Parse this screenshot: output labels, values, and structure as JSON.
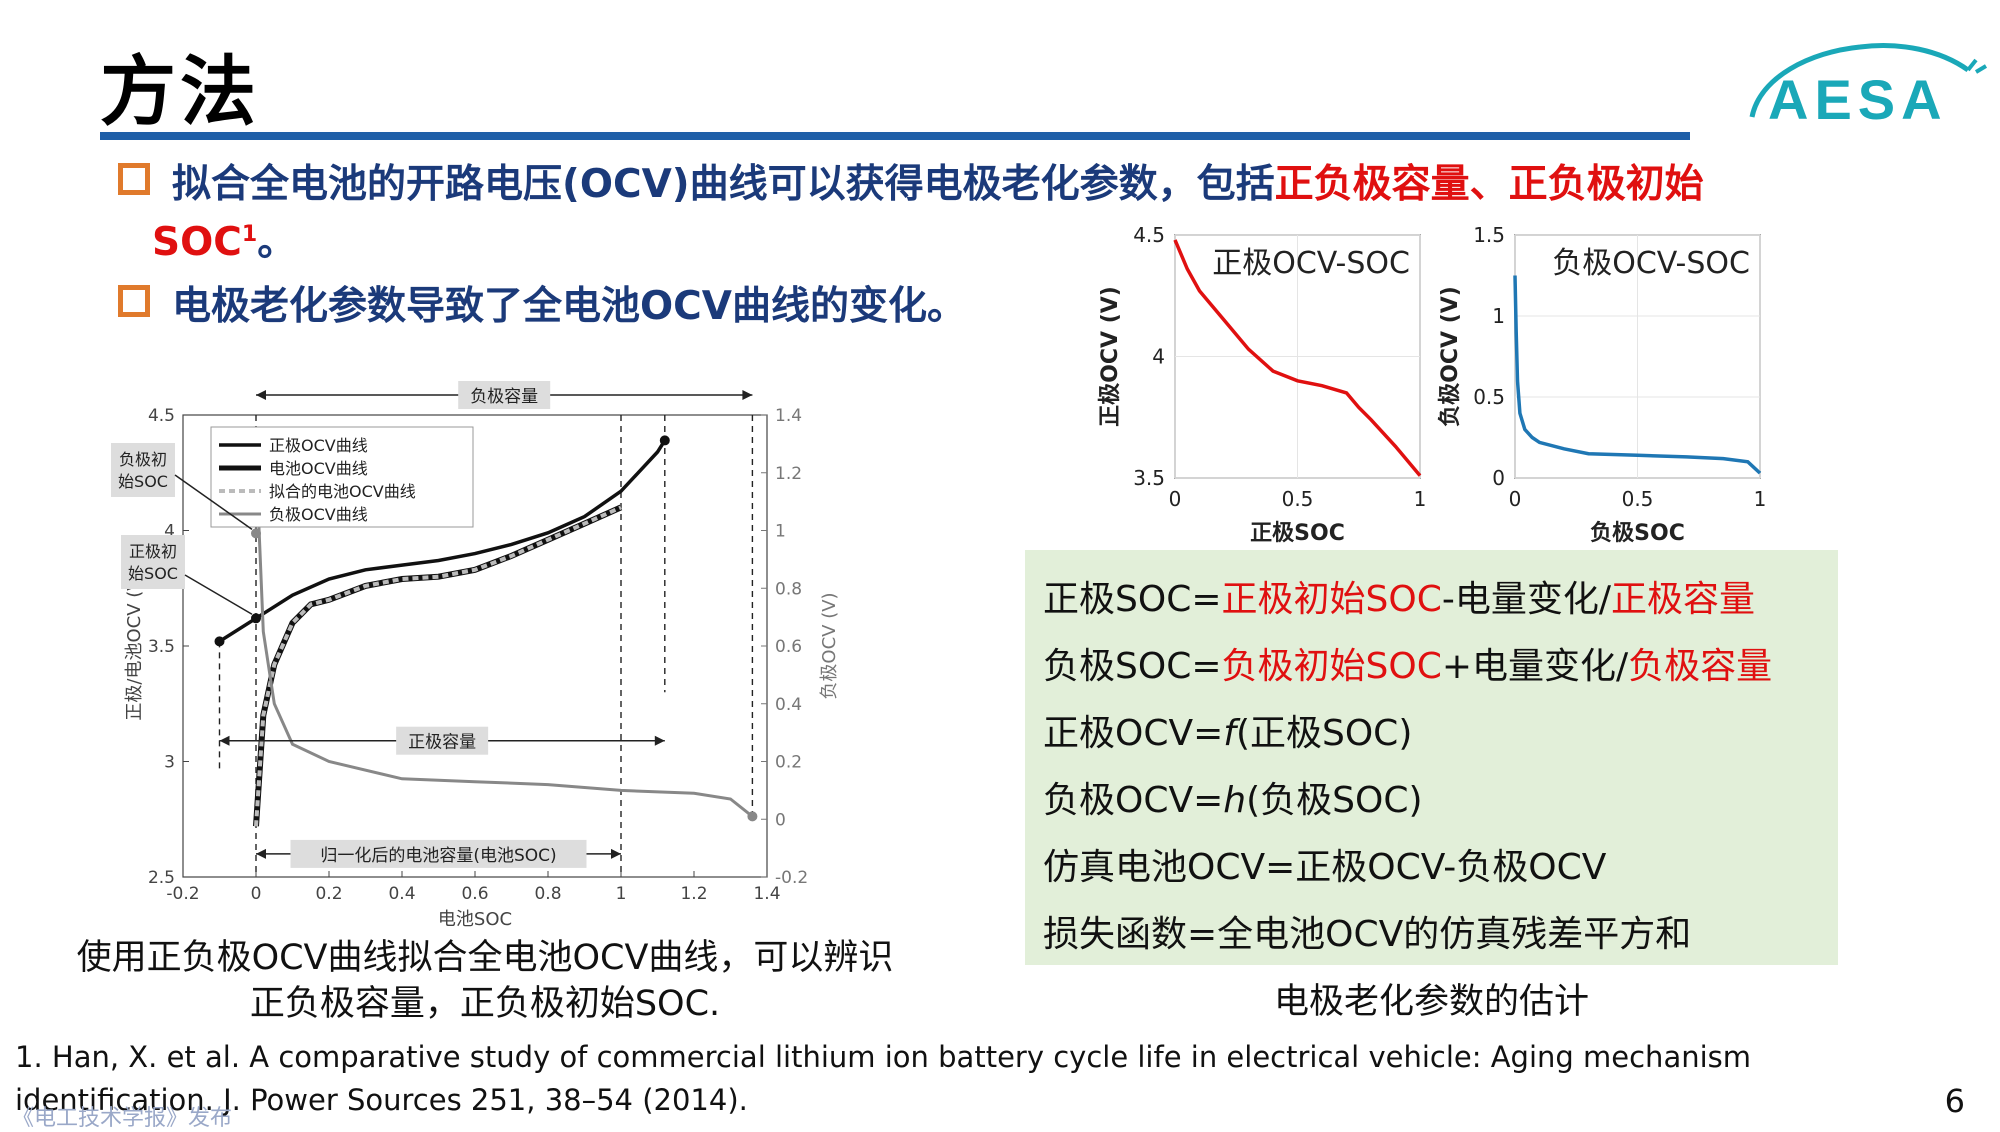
{
  "slide": {
    "title": "方法",
    "page_number": "6",
    "watermark": "《电工技术学报》发布"
  },
  "bullets": [
    {
      "line1_blue": "拟合全电池的开路电压(OCV)曲线可以获得电极老化参数，包括",
      "line1_red": "正负极容量、正负极初始",
      "line2_red": "SOC",
      "line2_sup": "1",
      "line2_blue": "。"
    },
    {
      "text": "电极老化参数导致了全电池OCV曲线的变化。"
    }
  ],
  "main_chart_caption": [
    "使用正负极OCV曲线拟合全电池OCV曲线，可以辨识",
    "正负极容量，正负极初始SOC."
  ],
  "formula_caption": "电极老化参数的估计",
  "formulas": [
    {
      "a": "正极SOC=",
      "b": "正极初始SOC",
      "c": "-电量变化/",
      "d": "正极容量"
    },
    {
      "a": "负极SOC=",
      "b": "负极初始SOC",
      "c": "+电量变化/",
      "d": "负极容量"
    },
    {
      "a": "正极OCV=",
      "i": "f",
      "c": "(正极SOC)"
    },
    {
      "a": "负极OCV=",
      "i": "h",
      "c": "(负极SOC)"
    },
    {
      "a": "仿真电池OCV=正极OCV-负极OCV"
    },
    {
      "a": "损失函数=全电池OCV的仿真残差平方和"
    }
  ],
  "reference": {
    "line1": "1. Han, X. et al. A comparative study of commercial lithium ion battery cycle life in electrical vehicle: Aging mechanism",
    "line2": "identification. J. Power Sources 251, 38–54 (2014)."
  },
  "logo": {
    "text": "AESA",
    "color": "#1aa8b8"
  },
  "colors": {
    "title_rule": "#1f5fa8",
    "bullet_text": "#1b3a7a",
    "highlight": "#e01010",
    "bullet_box": "#e07a2c",
    "formula_bg": "#e2efd9",
    "pos_curve": "#e01010",
    "neg_curve": "#1f77b4"
  },
  "chart_data": [
    {
      "type": "line",
      "xlabel": "电池SOC",
      "ylabel": "正极/电池OCV (V)",
      "y2label": "负极OCV (V)",
      "xlim": [
        -0.2,
        1.4
      ],
      "ylim": [
        2.5,
        4.5
      ],
      "y2lim": [
        -0.2,
        1.4
      ],
      "xticks": [
        "-0.2",
        "0",
        "0.2",
        "0.4",
        "0.6",
        "0.8",
        "1",
        "1.2",
        "1.4"
      ],
      "yticks": [
        "2.5",
        "3",
        "3.5",
        "4",
        "4.5"
      ],
      "y2ticks": [
        "-0.2",
        "0",
        "0.2",
        "0.4",
        "0.6",
        "0.8",
        "1",
        "1.2",
        "1.4"
      ],
      "legend": [
        "正极OCV曲线",
        "电池OCV曲线",
        "拟合的电池OCV曲线",
        "负极OCV曲线"
      ],
      "legend_position": "top-left",
      "annotations": {
        "neg_capacity": "负极容量",
        "pos_capacity": "正极容量",
        "normalized": "归一化后的电池容量(电池SOC)",
        "neg_init": [
          "负极初",
          "始SOC"
        ],
        "pos_init": [
          "正极初",
          "始SOC"
        ]
      },
      "series": [
        {
          "name": "正极OCV曲线",
          "axis": "left",
          "x": [
            -0.1,
            0,
            0.1,
            0.2,
            0.3,
            0.4,
            0.5,
            0.6,
            0.7,
            0.8,
            0.9,
            1.0,
            1.1,
            1.12
          ],
          "y": [
            3.52,
            3.62,
            3.72,
            3.79,
            3.83,
            3.85,
            3.87,
            3.9,
            3.94,
            3.99,
            4.06,
            4.17,
            4.34,
            4.39
          ]
        },
        {
          "name": "电池OCV曲线",
          "axis": "left",
          "x": [
            0,
            0.02,
            0.05,
            0.1,
            0.15,
            0.2,
            0.3,
            0.4,
            0.5,
            0.6,
            0.7,
            0.8,
            0.9,
            1.0
          ],
          "y": [
            2.72,
            3.2,
            3.42,
            3.6,
            3.68,
            3.7,
            3.76,
            3.79,
            3.8,
            3.83,
            3.89,
            3.96,
            4.03,
            4.1
          ]
        },
        {
          "name": "拟合的电池OCV曲线",
          "axis": "left",
          "x": [
            0,
            0.02,
            0.05,
            0.1,
            0.15,
            0.2,
            0.3,
            0.4,
            0.5,
            0.6,
            0.7,
            0.8,
            0.9,
            1.0
          ],
          "y": [
            2.72,
            3.2,
            3.42,
            3.6,
            3.68,
            3.7,
            3.76,
            3.79,
            3.8,
            3.83,
            3.89,
            3.96,
            4.03,
            4.1
          ]
        },
        {
          "name": "负极OCV曲线",
          "axis": "right",
          "x": [
            0,
            0.01,
            0.02,
            0.05,
            0.1,
            0.2,
            0.4,
            0.6,
            0.8,
            1.0,
            1.2,
            1.3,
            1.36
          ],
          "y": [
            1.25,
            0.95,
            0.65,
            0.4,
            0.26,
            0.2,
            0.14,
            0.13,
            0.12,
            0.1,
            0.09,
            0.07,
            0.01
          ]
        }
      ]
    },
    {
      "type": "line",
      "title": "正极OCV-SOC",
      "xlabel": "正极SOC",
      "ylabel": "正极OCV (V)",
      "xlim": [
        0,
        1
      ],
      "ylim": [
        3.5,
        4.5
      ],
      "xticks": [
        "0",
        "0.5",
        "1"
      ],
      "yticks": [
        "3.5",
        "4",
        "4.5"
      ],
      "series": [
        {
          "x": [
            0,
            0.05,
            0.1,
            0.2,
            0.3,
            0.4,
            0.5,
            0.6,
            0.7,
            0.75,
            0.8,
            0.9,
            1.0
          ],
          "y": [
            4.48,
            4.36,
            4.27,
            4.15,
            4.03,
            3.94,
            3.9,
            3.88,
            3.85,
            3.79,
            3.74,
            3.63,
            3.51
          ]
        }
      ]
    },
    {
      "type": "line",
      "title": "负极OCV-SOC",
      "xlabel": "负极SOC",
      "ylabel": "负极OCV (V)",
      "xlim": [
        0,
        1
      ],
      "ylim": [
        0,
        1.5
      ],
      "xticks": [
        "0",
        "0.5",
        "1"
      ],
      "yticks": [
        "0",
        "0.5",
        "1",
        "1.5"
      ],
      "series": [
        {
          "x": [
            0,
            0.005,
            0.01,
            0.02,
            0.04,
            0.07,
            0.1,
            0.2,
            0.3,
            0.5,
            0.7,
            0.85,
            0.95,
            1.0
          ],
          "y": [
            1.25,
            0.9,
            0.6,
            0.4,
            0.3,
            0.25,
            0.22,
            0.18,
            0.15,
            0.14,
            0.13,
            0.12,
            0.1,
            0.03
          ]
        }
      ]
    }
  ]
}
